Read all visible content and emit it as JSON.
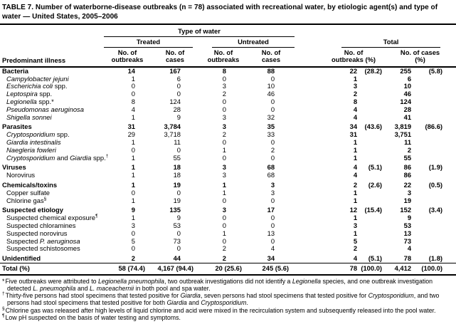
{
  "title": "TABLE 7. Number of waterborne-disease outbreaks (n = 78) associated with recreational water, by etiologic agent(s) and type of water — United States, 2005–2006",
  "header": {
    "type_of_water": "Type of water",
    "treated": "Treated",
    "untreated": "Untreated",
    "total": "Total",
    "col_illness": "Predominant illness",
    "sub_outbreaks": "No. of outbreaks",
    "sub_cases": "No. of cases",
    "sub_outbreaks_pct": "No. of outbreaks (%)",
    "sub_cases_pct": "No. of cases (%)"
  },
  "table": {
    "rows": [
      {
        "label": [
          {
            "t": "Bacteria"
          }
        ],
        "bold": true,
        "indent": false,
        "section": false,
        "total": false,
        "values": [
          "14",
          "167",
          "8",
          "88",
          "22",
          "(28.2)",
          "255",
          "(5.8)"
        ]
      },
      {
        "label": [
          {
            "t": "Campylobacter jejuni",
            "i": true
          }
        ],
        "bold": false,
        "indent": true,
        "section": false,
        "total": false,
        "values": [
          "1",
          "6",
          "0",
          "0",
          "1",
          "",
          "6",
          ""
        ]
      },
      {
        "label": [
          {
            "t": "Escherichia coli",
            "i": true
          },
          {
            "t": " spp."
          }
        ],
        "bold": false,
        "indent": true,
        "section": false,
        "total": false,
        "values": [
          "0",
          "0",
          "3",
          "10",
          "3",
          "",
          "10",
          ""
        ]
      },
      {
        "label": [
          {
            "t": "Leptospira",
            "i": true
          },
          {
            "t": " spp."
          }
        ],
        "bold": false,
        "indent": true,
        "section": false,
        "total": false,
        "values": [
          "0",
          "0",
          "2",
          "46",
          "2",
          "",
          "46",
          ""
        ]
      },
      {
        "label": [
          {
            "t": "Legionella",
            "i": true
          },
          {
            "t": " spp.*"
          }
        ],
        "bold": false,
        "indent": true,
        "section": false,
        "total": false,
        "values": [
          "8",
          "124",
          "0",
          "0",
          "8",
          "",
          "124",
          ""
        ]
      },
      {
        "label": [
          {
            "t": "Pseudomonas aeruginosa",
            "i": true
          }
        ],
        "bold": false,
        "indent": true,
        "section": false,
        "total": false,
        "values": [
          "4",
          "28",
          "0",
          "0",
          "4",
          "",
          "28",
          ""
        ]
      },
      {
        "label": [
          {
            "t": "Shigella sonnei",
            "i": true
          }
        ],
        "bold": false,
        "indent": true,
        "section": false,
        "total": false,
        "values": [
          "1",
          "9",
          "3",
          "32",
          "4",
          "",
          "41",
          ""
        ]
      },
      {
        "label": [
          {
            "t": "Parasites"
          }
        ],
        "bold": true,
        "indent": false,
        "section": true,
        "total": false,
        "values": [
          "31",
          "3,784",
          "3",
          "35",
          "34",
          "(43.6)",
          "3,819",
          "(86.6)"
        ]
      },
      {
        "label": [
          {
            "t": "Cryptosporidium",
            "i": true
          },
          {
            "t": " spp."
          }
        ],
        "bold": false,
        "indent": true,
        "section": false,
        "total": false,
        "values": [
          "29",
          "3,718",
          "2",
          "33",
          "31",
          "",
          "3,751",
          ""
        ]
      },
      {
        "label": [
          {
            "t": "Giardia intestinalis",
            "i": true
          }
        ],
        "bold": false,
        "indent": true,
        "section": false,
        "total": false,
        "values": [
          "1",
          "11",
          "0",
          "0",
          "1",
          "",
          "11",
          ""
        ]
      },
      {
        "label": [
          {
            "t": "Naegleria fowleri",
            "i": true
          }
        ],
        "bold": false,
        "indent": true,
        "section": false,
        "total": false,
        "values": [
          "0",
          "0",
          "1",
          "2",
          "1",
          "",
          "2",
          ""
        ]
      },
      {
        "label": [
          {
            "t": "Cryptosporidium",
            "i": true
          },
          {
            "t": " and "
          },
          {
            "t": "Giardia",
            "i": true
          },
          {
            "t": " spp."
          },
          {
            "t": "†",
            "sup": true
          }
        ],
        "bold": false,
        "indent": true,
        "section": false,
        "total": false,
        "values": [
          "1",
          "55",
          "0",
          "0",
          "1",
          "",
          "55",
          ""
        ]
      },
      {
        "label": [
          {
            "t": "Viruses"
          }
        ],
        "bold": true,
        "indent": false,
        "section": true,
        "total": false,
        "values": [
          "1",
          "18",
          "3",
          "68",
          "4",
          "(5.1)",
          "86",
          "(1.9)"
        ]
      },
      {
        "label": [
          {
            "t": "Norovirus"
          }
        ],
        "bold": false,
        "indent": true,
        "section": false,
        "total": false,
        "values": [
          "1",
          "18",
          "3",
          "68",
          "4",
          "",
          "86",
          ""
        ]
      },
      {
        "label": [
          {
            "t": "Chemicals/toxins"
          }
        ],
        "bold": true,
        "indent": false,
        "section": true,
        "total": false,
        "values": [
          "1",
          "19",
          "1",
          "3",
          "2",
          "(2.6)",
          "22",
          "(0.5)"
        ]
      },
      {
        "label": [
          {
            "t": "Copper sulfate"
          }
        ],
        "bold": false,
        "indent": true,
        "section": false,
        "total": false,
        "values": [
          "0",
          "0",
          "1",
          "3",
          "1",
          "",
          "3",
          ""
        ]
      },
      {
        "label": [
          {
            "t": "Chlorine gas"
          },
          {
            "t": "§",
            "sup": true
          }
        ],
        "bold": false,
        "indent": true,
        "section": false,
        "total": false,
        "values": [
          "1",
          "19",
          "0",
          "0",
          "1",
          "",
          "19",
          ""
        ]
      },
      {
        "label": [
          {
            "t": "Suspected etiology"
          }
        ],
        "bold": true,
        "indent": false,
        "section": true,
        "total": false,
        "values": [
          "9",
          "135",
          "3",
          "17",
          "12",
          "(15.4)",
          "152",
          "(3.4)"
        ]
      },
      {
        "label": [
          {
            "t": "Suspected chemical exposure"
          },
          {
            "t": "¶",
            "sup": true
          }
        ],
        "bold": false,
        "indent": true,
        "section": false,
        "total": false,
        "values": [
          "1",
          "9",
          "0",
          "0",
          "1",
          "",
          "9",
          ""
        ]
      },
      {
        "label": [
          {
            "t": "Suspected chloramines"
          }
        ],
        "bold": false,
        "indent": true,
        "section": false,
        "total": false,
        "values": [
          "3",
          "53",
          "0",
          "0",
          "3",
          "",
          "53",
          ""
        ]
      },
      {
        "label": [
          {
            "t": "Suspected norovirus"
          }
        ],
        "bold": false,
        "indent": true,
        "section": false,
        "total": false,
        "values": [
          "0",
          "0",
          "1",
          "13",
          "1",
          "",
          "13",
          ""
        ]
      },
      {
        "label": [
          {
            "t": "Suspected "
          },
          {
            "t": "P. aeruginosa",
            "i": true
          }
        ],
        "bold": false,
        "indent": true,
        "section": false,
        "total": false,
        "values": [
          "5",
          "73",
          "0",
          "0",
          "5",
          "",
          "73",
          ""
        ]
      },
      {
        "label": [
          {
            "t": "Suspected schistosomes"
          }
        ],
        "bold": false,
        "indent": true,
        "section": false,
        "total": false,
        "values": [
          "0",
          "0",
          "2",
          "4",
          "2",
          "",
          "4",
          ""
        ]
      },
      {
        "label": [
          {
            "t": "Unidentified"
          }
        ],
        "bold": true,
        "indent": false,
        "section": true,
        "total": false,
        "values": [
          "2",
          "44",
          "2",
          "34",
          "4",
          "(5.1)",
          "78",
          "(1.8)"
        ]
      },
      {
        "label": [
          {
            "t": "Total (%)"
          }
        ],
        "bold": true,
        "indent": false,
        "section": true,
        "total": true,
        "values": [
          "58 (74.4)",
          "4,167 (94.4)",
          "20 (25.6)",
          "245 (5.6)",
          "78",
          "(100.0)",
          "4,412",
          "(100.0)"
        ]
      }
    ]
  },
  "footnotes": [
    {
      "marker": "*",
      "sup": false,
      "segments": [
        {
          "t": "Five outbreaks were attributed to "
        },
        {
          "t": "Legionella pneumophila",
          "i": true
        },
        {
          "t": ", two outbreak investigations did not identify a "
        },
        {
          "t": "Legionella",
          "i": true
        },
        {
          "t": " species, and one outbreak investigation detected "
        },
        {
          "t": "L. pneumophila",
          "i": true
        },
        {
          "t": " and "
        },
        {
          "t": "L. maceachernii",
          "i": true
        },
        {
          "t": " in both pool and spa water."
        }
      ]
    },
    {
      "marker": "†",
      "sup": true,
      "segments": [
        {
          "t": "Thirty-five persons had stool specimens that tested positive for "
        },
        {
          "t": "Giardia",
          "i": true
        },
        {
          "t": ", seven persons had stool specimens that tested positive for "
        },
        {
          "t": "Cryptosporidium",
          "i": true
        },
        {
          "t": ", and two persons had stool specimens that tested positive for both "
        },
        {
          "t": "Giardia",
          "i": true
        },
        {
          "t": " and "
        },
        {
          "t": "Cryptosporidium",
          "i": true
        },
        {
          "t": "."
        }
      ]
    },
    {
      "marker": "§",
      "sup": true,
      "segments": [
        {
          "t": "Chlorine gas was released after high levels of liquid chlorine and acid were mixed in the recirculation system and subsequently released into the pool water."
        }
      ]
    },
    {
      "marker": "¶",
      "sup": true,
      "segments": [
        {
          "t": "Low pH suspected on the basis of water testing and symptoms."
        }
      ]
    }
  ]
}
